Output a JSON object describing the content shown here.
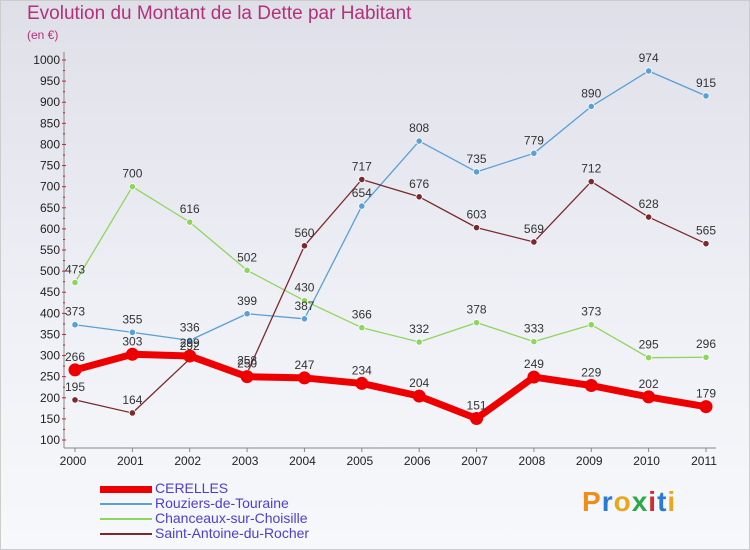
{
  "header": {
    "title": "Evolution du Montant de la Dette par Habitant",
    "subtitle": "(en €)"
  },
  "logo": {
    "text": "Proxiti",
    "colors": [
      "#f08c1a",
      "#2a7bd6",
      "#e8a81c",
      "#2fa84a",
      "#d42a2a",
      "#2a7bd6",
      "#e8a81c"
    ]
  },
  "chart_data": {
    "type": "line",
    "title": "Evolution du Montant de la Dette par Habitant",
    "subtitle": "(en €)",
    "xlabel": "",
    "ylabel": "",
    "x": [
      "2000",
      "2001",
      "2002",
      "2003",
      "2004",
      "2005",
      "2006",
      "2007",
      "2008",
      "2009",
      "2010",
      "2011"
    ],
    "ylim": [
      100,
      1000
    ],
    "yticks": [
      100,
      150,
      200,
      250,
      300,
      350,
      400,
      450,
      500,
      550,
      600,
      650,
      700,
      750,
      800,
      850,
      900,
      950,
      1000
    ],
    "grid": false,
    "legend_position": "bottom-left",
    "series": [
      {
        "name": "CERELLES",
        "color": "#ee0000",
        "values": [
          266,
          303,
          299,
          250,
          247,
          234,
          204,
          151,
          249,
          229,
          202,
          179
        ],
        "labels": [
          "266",
          "303",
          "299",
          "250",
          "247",
          "234",
          "204",
          "151",
          "249",
          "229",
          "202",
          "179"
        ]
      },
      {
        "name": "Rouziers-de-Touraine",
        "color": "#5a9fd6",
        "values": [
          373,
          355,
          336,
          399,
          387,
          654,
          808,
          735,
          779,
          890,
          974,
          915
        ],
        "labels": [
          "373",
          "355",
          "336",
          "399",
          "387",
          "654",
          "808",
          "735",
          "779",
          "890",
          "974",
          "915"
        ]
      },
      {
        "name": "Chanceaux-sur-Choisille",
        "color": "#8ed65a",
        "values": [
          473,
          700,
          616,
          502,
          430,
          366,
          332,
          378,
          333,
          373,
          295,
          296
        ],
        "labels": [
          "473",
          "700",
          "616",
          "502",
          "430",
          "366",
          "332",
          "378",
          "333",
          "373",
          "295",
          "296"
        ]
      },
      {
        "name": "Saint-Antoine-du-Rocher",
        "color": "#7a2a2a",
        "values": [
          195,
          164,
          292,
          258,
          560,
          717,
          676,
          603,
          569,
          712,
          628,
          565
        ],
        "labels": [
          "195",
          "164",
          "292",
          "258",
          "560",
          "717",
          "676",
          "603",
          "569",
          "712",
          "628",
          "565"
        ]
      }
    ]
  }
}
